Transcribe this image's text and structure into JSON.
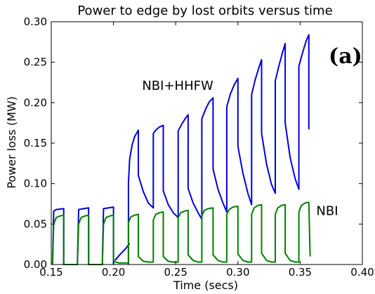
{
  "chart_data": {
    "type": "line",
    "title": "Power to edge by lost orbits versus time",
    "xlabel": "Time (secs)",
    "ylabel": "Power loss (MW)",
    "xlim": [
      0.15,
      0.4
    ],
    "ylim": [
      0.0,
      0.3
    ],
    "xticks": [
      "0.15",
      "0.20",
      "0.25",
      "0.30",
      "0.35",
      "0.40"
    ],
    "yticks": [
      "0.00",
      "0.05",
      "0.10",
      "0.15",
      "0.20",
      "0.25",
      "0.30"
    ],
    "grid": false,
    "panel_label": "(a)",
    "series": [
      {
        "name": "NBI+HHFW",
        "color": "#0000dd",
        "segments": [
          [
            [
              0.151,
              0.0
            ],
            [
              0.152,
              0.066
            ],
            [
              0.154,
              0.068
            ],
            [
              0.16,
              0.069
            ],
            [
              0.16,
              0.0
            ],
            [
              0.171,
              0.0
            ],
            [
              0.172,
              0.068
            ],
            [
              0.176,
              0.069
            ],
            [
              0.18,
              0.07
            ],
            [
              0.18,
              0.0
            ],
            [
              0.191,
              0.0
            ],
            [
              0.192,
              0.069
            ],
            [
              0.196,
              0.07
            ],
            [
              0.2,
              0.071
            ],
            [
              0.2,
              0.0
            ]
          ],
          [
            [
              0.201,
              0.005
            ],
            [
              0.205,
              0.012
            ],
            [
              0.21,
              0.02
            ],
            [
              0.213,
              0.026
            ]
          ],
          [
            [
              0.212,
              0.0
            ],
            [
              0.212,
              0.1
            ],
            [
              0.213,
              0.13
            ],
            [
              0.215,
              0.148
            ],
            [
              0.217,
              0.158
            ],
            [
              0.22,
              0.166
            ],
            [
              0.22,
              0.11
            ],
            [
              0.224,
              0.09
            ],
            [
              0.228,
              0.076
            ],
            [
              0.232,
              0.07
            ],
            [
              0.232,
              0.162
            ],
            [
              0.234,
              0.166
            ],
            [
              0.237,
              0.17
            ],
            [
              0.24,
              0.172
            ],
            [
              0.24,
              0.091
            ],
            [
              0.244,
              0.074
            ],
            [
              0.248,
              0.064
            ],
            [
              0.252,
              0.058
            ],
            [
              0.252,
              0.165
            ],
            [
              0.255,
              0.174
            ],
            [
              0.258,
              0.181
            ],
            [
              0.26,
              0.185
            ],
            [
              0.26,
              0.094
            ],
            [
              0.264,
              0.076
            ],
            [
              0.268,
              0.064
            ],
            [
              0.271,
              0.056
            ],
            [
              0.271,
              0.18
            ],
            [
              0.274,
              0.192
            ],
            [
              0.277,
              0.201
            ],
            [
              0.28,
              0.206
            ],
            [
              0.28,
              0.118
            ],
            [
              0.284,
              0.093
            ],
            [
              0.288,
              0.076
            ],
            [
              0.291,
              0.065
            ],
            [
              0.291,
              0.195
            ],
            [
              0.294,
              0.211
            ],
            [
              0.297,
              0.222
            ],
            [
              0.3,
              0.23
            ],
            [
              0.3,
              0.146
            ],
            [
              0.304,
              0.113
            ],
            [
              0.308,
              0.088
            ],
            [
              0.311,
              0.074
            ],
            [
              0.311,
              0.21
            ],
            [
              0.314,
              0.229
            ],
            [
              0.317,
              0.244
            ],
            [
              0.319,
              0.253
            ],
            [
              0.319,
              0.162
            ],
            [
              0.323,
              0.124
            ],
            [
              0.327,
              0.099
            ],
            [
              0.33,
              0.088
            ],
            [
              0.33,
              0.227
            ],
            [
              0.333,
              0.246
            ],
            [
              0.336,
              0.263
            ],
            [
              0.338,
              0.273
            ],
            [
              0.338,
              0.175
            ],
            [
              0.342,
              0.132
            ],
            [
              0.346,
              0.106
            ],
            [
              0.349,
              0.093
            ],
            [
              0.349,
              0.245
            ],
            [
              0.352,
              0.262
            ],
            [
              0.355,
              0.277
            ],
            [
              0.357,
              0.284
            ],
            [
              0.357,
              0.167
            ]
          ]
        ]
      },
      {
        "name": "NBI",
        "color": "#007f00",
        "segments": [
          [
            [
              0.151,
              0.0
            ],
            [
              0.152,
              0.05
            ],
            [
              0.154,
              0.058
            ],
            [
              0.157,
              0.06
            ],
            [
              0.16,
              0.061
            ],
            [
              0.16,
              0.0
            ],
            [
              0.171,
              0.0
            ],
            [
              0.172,
              0.05
            ],
            [
              0.174,
              0.058
            ],
            [
              0.177,
              0.06
            ],
            [
              0.18,
              0.061
            ],
            [
              0.18,
              0.0
            ],
            [
              0.191,
              0.0
            ],
            [
              0.192,
              0.05
            ],
            [
              0.194,
              0.058
            ],
            [
              0.197,
              0.06
            ],
            [
              0.2,
              0.061
            ],
            [
              0.2,
              0.004
            ],
            [
              0.204,
              0.002
            ],
            [
              0.208,
              0.002
            ],
            [
              0.212,
              0.002
            ],
            [
              0.212,
              0.052
            ],
            [
              0.214,
              0.059
            ],
            [
              0.217,
              0.061
            ],
            [
              0.22,
              0.062
            ],
            [
              0.22,
              0.01
            ],
            [
              0.224,
              0.004
            ],
            [
              0.228,
              0.003
            ],
            [
              0.232,
              0.003
            ],
            [
              0.232,
              0.055
            ],
            [
              0.234,
              0.062
            ],
            [
              0.237,
              0.064
            ],
            [
              0.24,
              0.065
            ],
            [
              0.24,
              0.01
            ],
            [
              0.244,
              0.004
            ],
            [
              0.248,
              0.003
            ],
            [
              0.252,
              0.003
            ],
            [
              0.252,
              0.058
            ],
            [
              0.254,
              0.064
            ],
            [
              0.257,
              0.066
            ],
            [
              0.26,
              0.067
            ],
            [
              0.26,
              0.012
            ],
            [
              0.264,
              0.005
            ],
            [
              0.268,
              0.003
            ],
            [
              0.271,
              0.003
            ],
            [
              0.271,
              0.06
            ],
            [
              0.273,
              0.067
            ],
            [
              0.276,
              0.069
            ],
            [
              0.28,
              0.07
            ],
            [
              0.28,
              0.012
            ],
            [
              0.284,
              0.005
            ],
            [
              0.288,
              0.003
            ],
            [
              0.291,
              0.003
            ],
            [
              0.291,
              0.062
            ],
            [
              0.293,
              0.068
            ],
            [
              0.296,
              0.071
            ],
            [
              0.3,
              0.072
            ],
            [
              0.3,
              0.013
            ],
            [
              0.304,
              0.005
            ],
            [
              0.308,
              0.003
            ],
            [
              0.311,
              0.003
            ],
            [
              0.311,
              0.062
            ],
            [
              0.313,
              0.07
            ],
            [
              0.316,
              0.073
            ],
            [
              0.319,
              0.074
            ],
            [
              0.319,
              0.014
            ],
            [
              0.323,
              0.005
            ],
            [
              0.327,
              0.003
            ],
            [
              0.33,
              0.003
            ],
            [
              0.33,
              0.062
            ],
            [
              0.332,
              0.07
            ],
            [
              0.335,
              0.073
            ],
            [
              0.338,
              0.074
            ],
            [
              0.338,
              0.014
            ],
            [
              0.342,
              0.005
            ],
            [
              0.346,
              0.003
            ],
            [
              0.349,
              0.003
            ],
            [
              0.349,
              0.065
            ],
            [
              0.351,
              0.073
            ],
            [
              0.354,
              0.076
            ],
            [
              0.357,
              0.077
            ],
            [
              0.358,
              0.01
            ]
          ]
        ]
      }
    ],
    "annotations": [
      {
        "text": "NBI+HHFW",
        "x": 0.223,
        "y": 0.216
      },
      {
        "text": "NBI",
        "x": 0.363,
        "y": 0.061
      }
    ]
  }
}
